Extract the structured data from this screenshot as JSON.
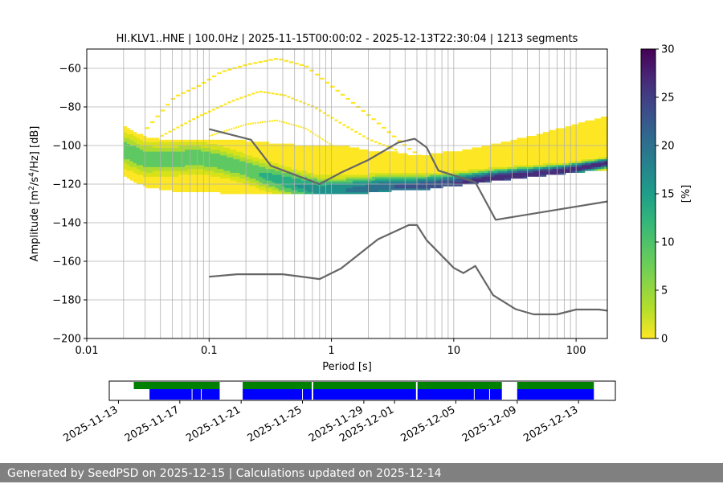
{
  "chart_data": {
    "type": "heatmap",
    "title": "HI.KLV1..HNE | 100.0Hz | 2025-11-15T00:00:02 - 2025-12-13T22:30:04 | 1213 segments",
    "xlabel": "Period [s]",
    "ylabel_main": "Amplitude [m",
    "ylabel_sup1": "2",
    "ylabel_mid": "/s",
    "ylabel_sup2": "4",
    "ylabel_end": "/Hz] [dB]",
    "xscale": "log",
    "xlim": [
      0.01,
      180
    ],
    "ylim": [
      -200,
      -50
    ],
    "grid": true,
    "x_ticks": [
      {
        "value": 0.01,
        "label": "0.01"
      },
      {
        "value": 0.1,
        "label": "0.1"
      },
      {
        "value": 1,
        "label": "1"
      },
      {
        "value": 10,
        "label": "10"
      },
      {
        "value": 100,
        "label": "100"
      }
    ],
    "y_ticks": [
      {
        "value": -60,
        "label": "−60"
      },
      {
        "value": -80,
        "label": "−80"
      },
      {
        "value": -100,
        "label": "−100"
      },
      {
        "value": -120,
        "label": "−120"
      },
      {
        "value": -140,
        "label": "−140"
      },
      {
        "value": -160,
        "label": "−160"
      },
      {
        "value": -180,
        "label": "−180"
      },
      {
        "value": -200,
        "label": "−200"
      }
    ],
    "colorbar": {
      "label": "[%]",
      "min": 0,
      "max": 30,
      "colormap": "viridis_r",
      "ticks": [
        {
          "value": 0,
          "label": "0"
        },
        {
          "value": 5,
          "label": "5"
        },
        {
          "value": 10,
          "label": "10"
        },
        {
          "value": 15,
          "label": "15"
        },
        {
          "value": 20,
          "label": "20"
        },
        {
          "value": 25,
          "label": "25"
        },
        {
          "value": 30,
          "label": "30"
        }
      ]
    },
    "psd_mode": {
      "period": [
        0.02,
        0.03,
        0.05,
        0.08,
        0.12,
        0.2,
        0.3,
        0.5,
        0.8,
        1.2,
        2,
        3,
        5,
        8,
        12,
        20,
        40,
        80,
        180
      ],
      "amplitude": [
        -102,
        -107,
        -107,
        -106,
        -108,
        -112,
        -116,
        -120,
        -123,
        -123,
        -122,
        -121,
        -121,
        -120,
        -119,
        -117,
        -115,
        -113,
        -109
      ]
    },
    "psd_spread": {
      "period": [
        0.02,
        0.03,
        0.05,
        0.08,
        0.12,
        0.2,
        0.3,
        0.5,
        0.8,
        1.2,
        2,
        3,
        5,
        8,
        12,
        20,
        40,
        80,
        180
      ],
      "upper": [
        -90,
        -96,
        -98,
        -97,
        -97,
        -98,
        -99,
        -100,
        -100,
        -100,
        -103,
        -103,
        -106,
        -104,
        -103,
        -100,
        -96,
        -91,
        -85
      ],
      "lower": [
        -115,
        -121,
        -123,
        -124,
        -124,
        -125,
        -125,
        -125,
        -125,
        -125,
        -124,
        -123,
        -123,
        -121,
        -120,
        -118,
        -116,
        -114,
        -112
      ]
    },
    "outlier_curves": [
      {
        "period": [
          0.03,
          0.05,
          0.08,
          0.12,
          0.2,
          0.35,
          0.6,
          1,
          2,
          4,
          7,
          10
        ],
        "amplitude": [
          -91,
          -75,
          -69,
          -62,
          -58,
          -55,
          -59,
          -70,
          -85,
          -101,
          -111,
          -115
        ]
      },
      {
        "period": [
          0.04,
          0.08,
          0.15,
          0.25,
          0.4,
          0.7,
          1.2,
          2,
          3.5
        ],
        "amplitude": [
          -95,
          -85,
          -77,
          -72,
          -74,
          -80,
          -89,
          -97,
          -103
        ]
      },
      {
        "period": [
          0.1,
          0.2,
          0.35,
          0.6,
          1,
          1.5
        ],
        "amplitude": [
          -95,
          -89,
          -87,
          -91,
          -100,
          -108
        ]
      }
    ],
    "series": [
      {
        "name": "",
        "color": "#666666",
        "x": [
          0.1,
          0.22,
          0.32,
          0.8,
          1.2,
          2,
          3.5,
          4.8,
          6,
          7.5,
          15,
          22,
          180
        ],
        "y": [
          -91.5,
          -97,
          -110.5,
          -120,
          -114,
          -107.5,
          -98.5,
          -96.5,
          -101,
          -113,
          -119,
          -138.5,
          -129
        ]
      },
      {
        "name": "",
        "color": "#666666",
        "x": [
          0.1,
          0.17,
          0.4,
          0.8,
          1.2,
          2.4,
          4.3,
          5,
          6,
          10,
          12,
          15,
          21,
          32,
          45,
          70,
          100,
          154,
          180
        ],
        "y": [
          -168,
          -166.7,
          -166.7,
          -169.2,
          -163.7,
          -148.6,
          -141.2,
          -141.2,
          -149.1,
          -163.4,
          -166.1,
          -162.4,
          -177.6,
          -184.8,
          -187.5,
          -187.5,
          -185,
          -185,
          -185.6
        ]
      }
    ]
  },
  "timeline": {
    "x_ticks": [
      "2025-11-13",
      "2025-11-17",
      "2025-11-21",
      "2025-11-25",
      "2025-11-29",
      "2025-12-01",
      "2025-12-05",
      "2025-12-09",
      "2025-12-13"
    ],
    "tick_days": [
      0,
      4,
      8,
      12,
      16,
      18,
      22,
      26,
      30
    ],
    "start_day": -0.6,
    "end_day": 32.4,
    "green_bars": [
      [
        1.0,
        6.6
      ],
      [
        8.1,
        12.6
      ],
      [
        12.7,
        19.4
      ],
      [
        19.5,
        25.0
      ],
      [
        26.0,
        31.0
      ]
    ],
    "blue_bars": [
      [
        2.0,
        6.6
      ],
      [
        8.1,
        12.6
      ],
      [
        12.7,
        19.4
      ],
      [
        19.5,
        25.0
      ],
      [
        26.0,
        31.0
      ]
    ],
    "colors": {
      "green": "#008000",
      "blue": "#0000ff"
    }
  },
  "footer": {
    "text": "Generated by SeedPSD on 2025-12-15 | Calculations updated on 2025-12-14"
  }
}
